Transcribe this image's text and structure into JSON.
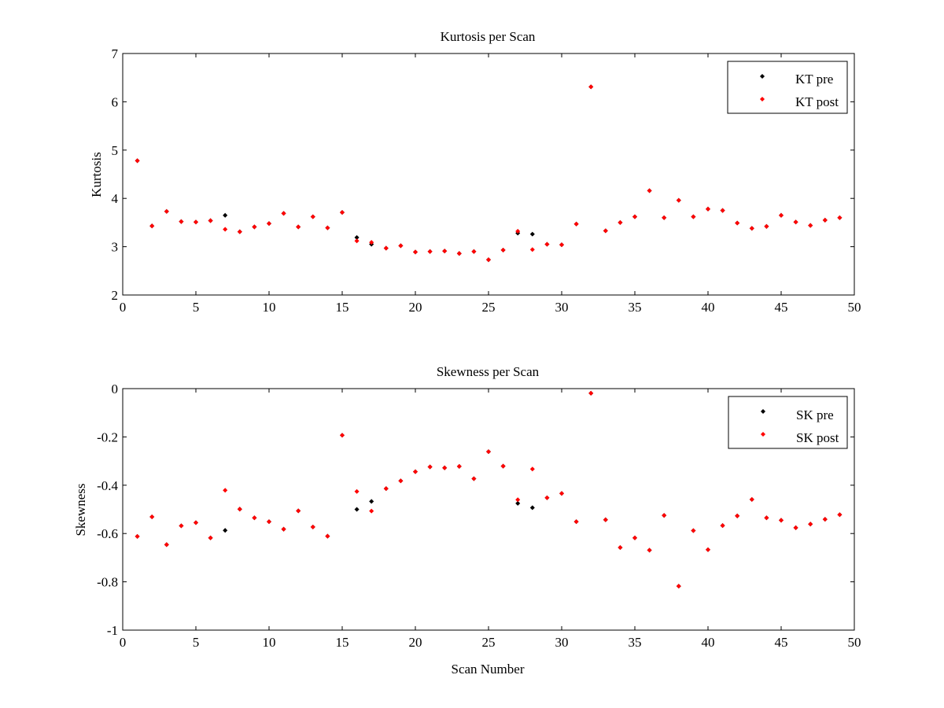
{
  "colors": {
    "pre": "#000000",
    "post": "#ff0000",
    "axes": "#000000",
    "background": "#ffffff"
  },
  "chart_data": [
    {
      "type": "scatter",
      "title": "Kurtosis per Scan",
      "xlabel": "",
      "ylabel": "Kurtosis",
      "xlim": [
        0,
        50
      ],
      "ylim": [
        2,
        7
      ],
      "xticks": [
        0,
        5,
        10,
        15,
        20,
        25,
        30,
        35,
        40,
        45,
        50
      ],
      "yticks": [
        2,
        3,
        4,
        5,
        6,
        7
      ],
      "xtick_labels": [
        "0",
        "5",
        "10",
        "15",
        "20",
        "25",
        "30",
        "35",
        "40",
        "45",
        "50"
      ],
      "ytick_labels": [
        "2",
        "3",
        "4",
        "5",
        "6",
        "7"
      ],
      "grid": false,
      "legend_position": "top-right",
      "series": [
        {
          "name": "KT pre",
          "color": "#000000",
          "x": [
            1,
            2,
            3,
            4,
            5,
            6,
            7,
            8,
            9,
            10,
            11,
            12,
            13,
            14,
            15,
            16,
            17,
            18,
            19,
            20,
            21,
            22,
            23,
            24,
            25,
            26,
            27,
            28,
            29,
            30,
            31,
            32,
            33,
            34,
            35,
            36,
            37,
            38,
            39,
            40,
            41,
            42,
            43,
            44,
            45,
            46,
            47,
            48,
            49
          ],
          "y": [
            4.78,
            3.43,
            3.73,
            3.52,
            3.51,
            3.54,
            3.65,
            3.31,
            3.41,
            3.48,
            3.69,
            3.41,
            3.62,
            3.39,
            3.71,
            3.19,
            3.05,
            2.97,
            3.02,
            2.89,
            2.9,
            2.91,
            2.86,
            2.9,
            2.73,
            2.93,
            3.28,
            3.26,
            3.05,
            3.04,
            3.47,
            6.31,
            3.33,
            3.5,
            3.62,
            4.16,
            3.6,
            3.96,
            3.62,
            3.78,
            3.75,
            3.49,
            3.38,
            3.42,
            3.65,
            3.51,
            3.44,
            3.55,
            3.6
          ]
        },
        {
          "name": "KT post",
          "color": "#ff0000",
          "x": [
            1,
            2,
            3,
            4,
            5,
            6,
            7,
            8,
            9,
            10,
            11,
            12,
            13,
            14,
            15,
            16,
            17,
            18,
            19,
            20,
            21,
            22,
            23,
            24,
            25,
            26,
            27,
            28,
            29,
            30,
            31,
            32,
            33,
            34,
            35,
            36,
            37,
            38,
            39,
            40,
            41,
            42,
            43,
            44,
            45,
            46,
            47,
            48,
            49
          ],
          "y": [
            4.78,
            3.43,
            3.73,
            3.52,
            3.51,
            3.54,
            3.36,
            3.31,
            3.41,
            3.48,
            3.69,
            3.41,
            3.62,
            3.39,
            3.71,
            3.12,
            3.09,
            2.97,
            3.02,
            2.89,
            2.9,
            2.91,
            2.86,
            2.9,
            2.73,
            2.93,
            3.32,
            2.94,
            3.05,
            3.04,
            3.47,
            6.31,
            3.33,
            3.5,
            3.62,
            4.16,
            3.6,
            3.96,
            3.62,
            3.78,
            3.75,
            3.49,
            3.38,
            3.42,
            3.65,
            3.51,
            3.44,
            3.55,
            3.6
          ]
        }
      ]
    },
    {
      "type": "scatter",
      "title": "Skewness per Scan",
      "xlabel": "Scan Number",
      "ylabel": "Skewness",
      "xlim": [
        0,
        50
      ],
      "ylim": [
        -1,
        0
      ],
      "xticks": [
        0,
        5,
        10,
        15,
        20,
        25,
        30,
        35,
        40,
        45,
        50
      ],
      "yticks": [
        -1,
        -0.8,
        -0.6,
        -0.4,
        -0.2,
        0
      ],
      "xtick_labels": [
        "0",
        "5",
        "10",
        "15",
        "20",
        "25",
        "30",
        "35",
        "40",
        "45",
        "50"
      ],
      "ytick_labels": [
        "-1",
        "-0.8",
        "-0.6",
        "-0.4",
        "-0.2",
        "0"
      ],
      "grid": false,
      "legend_position": "top-right",
      "series": [
        {
          "name": "SK pre",
          "color": "#000000",
          "x": [
            1,
            2,
            3,
            4,
            5,
            6,
            7,
            8,
            9,
            10,
            11,
            12,
            13,
            14,
            15,
            16,
            17,
            18,
            19,
            20,
            21,
            22,
            23,
            24,
            25,
            26,
            27,
            28,
            29,
            30,
            31,
            32,
            33,
            34,
            35,
            36,
            37,
            38,
            39,
            40,
            41,
            42,
            43,
            44,
            45,
            46,
            47,
            48,
            49
          ],
          "y": [
            -0.612,
            -0.531,
            -0.646,
            -0.568,
            -0.555,
            -0.618,
            -0.587,
            -0.499,
            -0.535,
            -0.551,
            -0.582,
            -0.506,
            -0.573,
            -0.611,
            -0.193,
            -0.5,
            -0.467,
            -0.414,
            -0.382,
            -0.344,
            -0.324,
            -0.328,
            -0.322,
            -0.373,
            -0.261,
            -0.321,
            -0.475,
            -0.493,
            -0.452,
            -0.434,
            -0.551,
            -0.019,
            -0.543,
            -0.658,
            -0.618,
            -0.669,
            -0.525,
            -0.818,
            -0.588,
            -0.667,
            -0.567,
            -0.527,
            -0.459,
            -0.535,
            -0.545,
            -0.576,
            -0.561,
            -0.541,
            -0.522
          ]
        },
        {
          "name": "SK post",
          "color": "#ff0000",
          "x": [
            1,
            2,
            3,
            4,
            5,
            6,
            7,
            8,
            9,
            10,
            11,
            12,
            13,
            14,
            15,
            16,
            17,
            18,
            19,
            20,
            21,
            22,
            23,
            24,
            25,
            26,
            27,
            28,
            29,
            30,
            31,
            32,
            33,
            34,
            35,
            36,
            37,
            38,
            39,
            40,
            41,
            42,
            43,
            44,
            45,
            46,
            47,
            48,
            49
          ],
          "y": [
            -0.612,
            -0.531,
            -0.646,
            -0.568,
            -0.555,
            -0.618,
            -0.421,
            -0.499,
            -0.535,
            -0.551,
            -0.582,
            -0.506,
            -0.573,
            -0.611,
            -0.193,
            -0.426,
            -0.507,
            -0.414,
            -0.382,
            -0.344,
            -0.324,
            -0.328,
            -0.322,
            -0.373,
            -0.261,
            -0.321,
            -0.46,
            -0.333,
            -0.452,
            -0.434,
            -0.551,
            -0.019,
            -0.543,
            -0.658,
            -0.618,
            -0.669,
            -0.525,
            -0.818,
            -0.588,
            -0.667,
            -0.567,
            -0.527,
            -0.459,
            -0.535,
            -0.545,
            -0.576,
            -0.561,
            -0.541,
            -0.522
          ]
        }
      ]
    }
  ]
}
